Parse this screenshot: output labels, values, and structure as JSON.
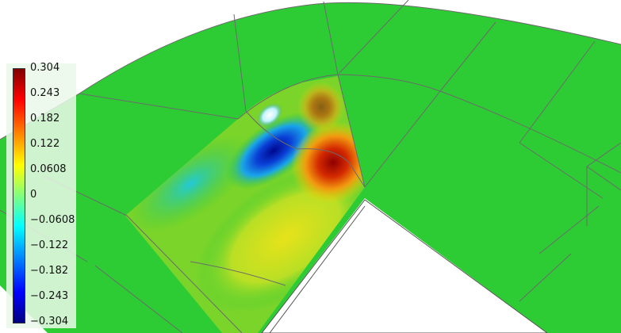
{
  "colors": {
    "background": "#ffffff",
    "mesh_face": "#2ecc34",
    "mesh_edge": "#6b6b6b",
    "legend_panel": "#ebf8eb"
  },
  "legend": {
    "colormap": "jet",
    "range": [
      -0.304,
      0.304
    ],
    "ticks": [
      "0.304",
      "0.243",
      "0.182",
      "0.122",
      "0.0608",
      "0",
      "−0.0608",
      "−0.122",
      "−0.182",
      "−0.243",
      "−0.304"
    ]
  }
}
